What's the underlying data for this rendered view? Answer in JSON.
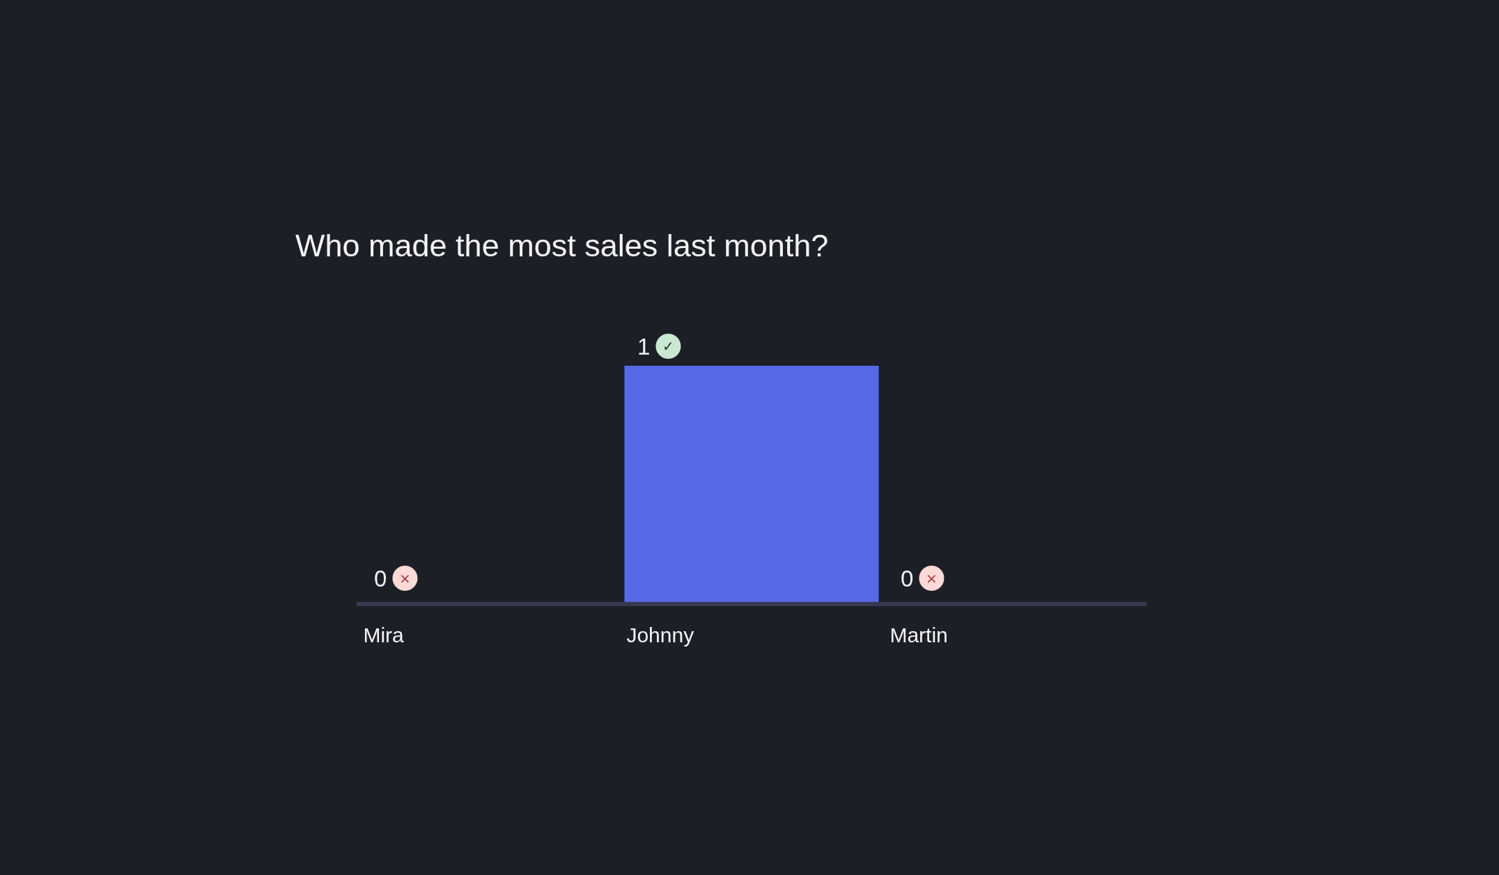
{
  "chart_data": {
    "type": "bar",
    "title": "Who made the most sales last month?",
    "categories": [
      "Mira",
      "Johnny",
      "Martin"
    ],
    "values": [
      0,
      1,
      0
    ],
    "color": "#5769e7",
    "data_labels": true,
    "tick_labels": "x",
    "annotations": [
      {
        "text": "×",
        "x": "Mira",
        "y": 0
      },
      {
        "text": "✓",
        "x": "Johnny",
        "y": 1
      },
      {
        "text": "×",
        "x": "Martin",
        "y": 0
      }
    ]
  }
}
